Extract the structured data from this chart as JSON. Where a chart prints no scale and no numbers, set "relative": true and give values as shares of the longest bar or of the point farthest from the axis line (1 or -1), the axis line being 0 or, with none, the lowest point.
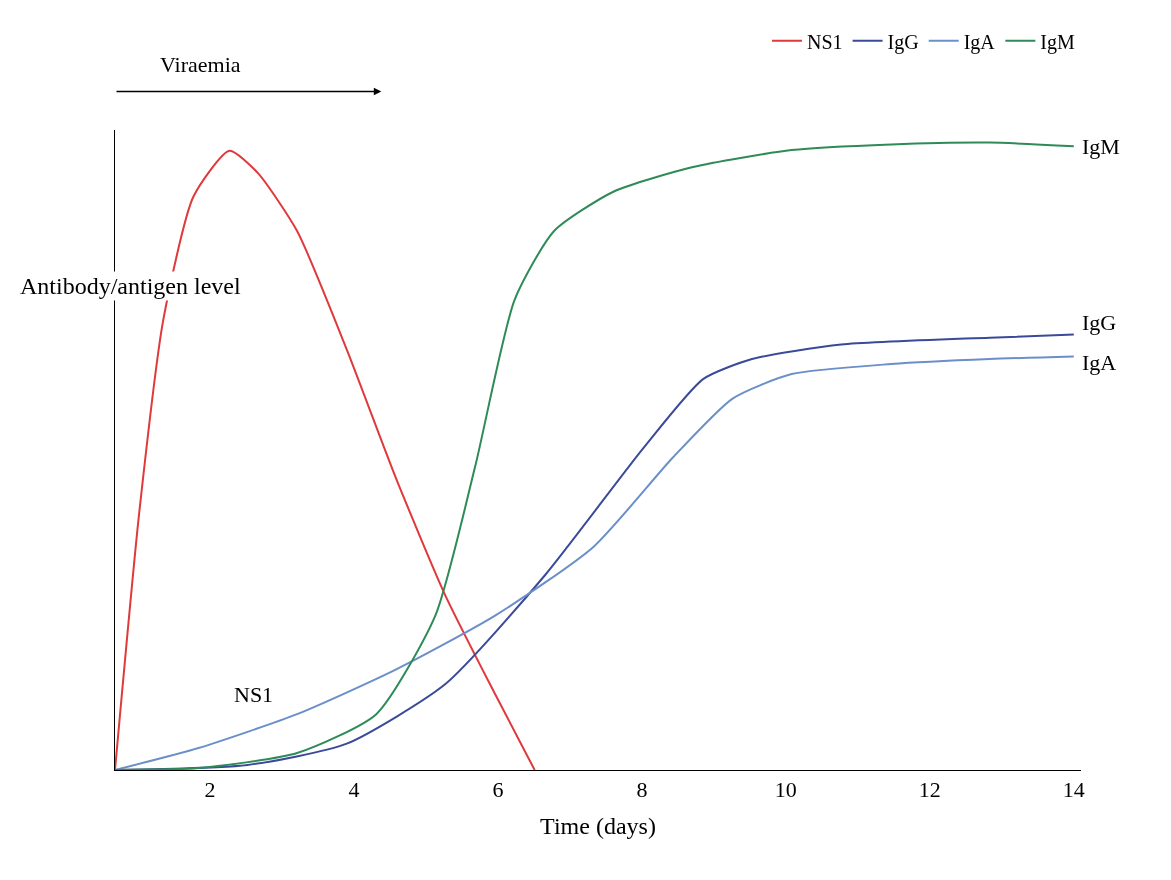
{
  "chart_data": {
    "type": "line",
    "relative": true,
    "xlabel": "Time (days)",
    "ylabel": "Antibody/antigen level",
    "annotations": [
      "Viraemia"
    ],
    "xlim": [
      0.68,
      14.1
    ],
    "xticks": [
      2,
      4,
      6,
      8,
      10,
      12,
      14
    ],
    "legend": "top right",
    "marker": "none",
    "line_style": "solid",
    "series": [
      {
        "name": "NS1",
        "color": "#e0393b",
        "x": [
          0.68,
          1.01,
          1.35,
          1.77,
          2.27,
          2.66,
          3.21,
          3.9,
          4.58,
          5.27,
          5.96,
          6.51
        ],
        "values": [
          0,
          0.403,
          0.717,
          0.914,
          0.987,
          0.952,
          0.859,
          0.67,
          0.466,
          0.278,
          0.121,
          0
        ]
      },
      {
        "name": "IgG",
        "color": "#3a4a9a",
        "x": [
          0.68,
          2.52,
          3.9,
          5.27,
          6.65,
          8.02,
          8.85,
          9.53,
          10.77,
          12.83,
          14.0
        ],
        "values": [
          0,
          0.008,
          0.042,
          0.137,
          0.31,
          0.513,
          0.623,
          0.655,
          0.678,
          0.689,
          0.694
        ]
      },
      {
        "name": "IgA",
        "color": "#6b8fc8",
        "x": [
          0.68,
          1.84,
          3.21,
          4.58,
          5.96,
          7.33,
          8.43,
          9.26,
          10.08,
          11.46,
          12.83,
          14.0
        ],
        "values": [
          0,
          0.035,
          0.089,
          0.16,
          0.246,
          0.356,
          0.498,
          0.592,
          0.631,
          0.647,
          0.655,
          0.659
        ]
      },
      {
        "name": "IgM",
        "color": "#2e8b57",
        "x": [
          0.68,
          1.84,
          3.21,
          4.31,
          5.13,
          5.68,
          6.23,
          6.78,
          7.61,
          8.71,
          10.08,
          11.46,
          12.83,
          14.0
        ],
        "values": [
          0,
          0.003,
          0.027,
          0.089,
          0.246,
          0.482,
          0.749,
          0.859,
          0.922,
          0.961,
          0.988,
          0.997,
          1.0,
          0.994
        ]
      }
    ]
  }
}
